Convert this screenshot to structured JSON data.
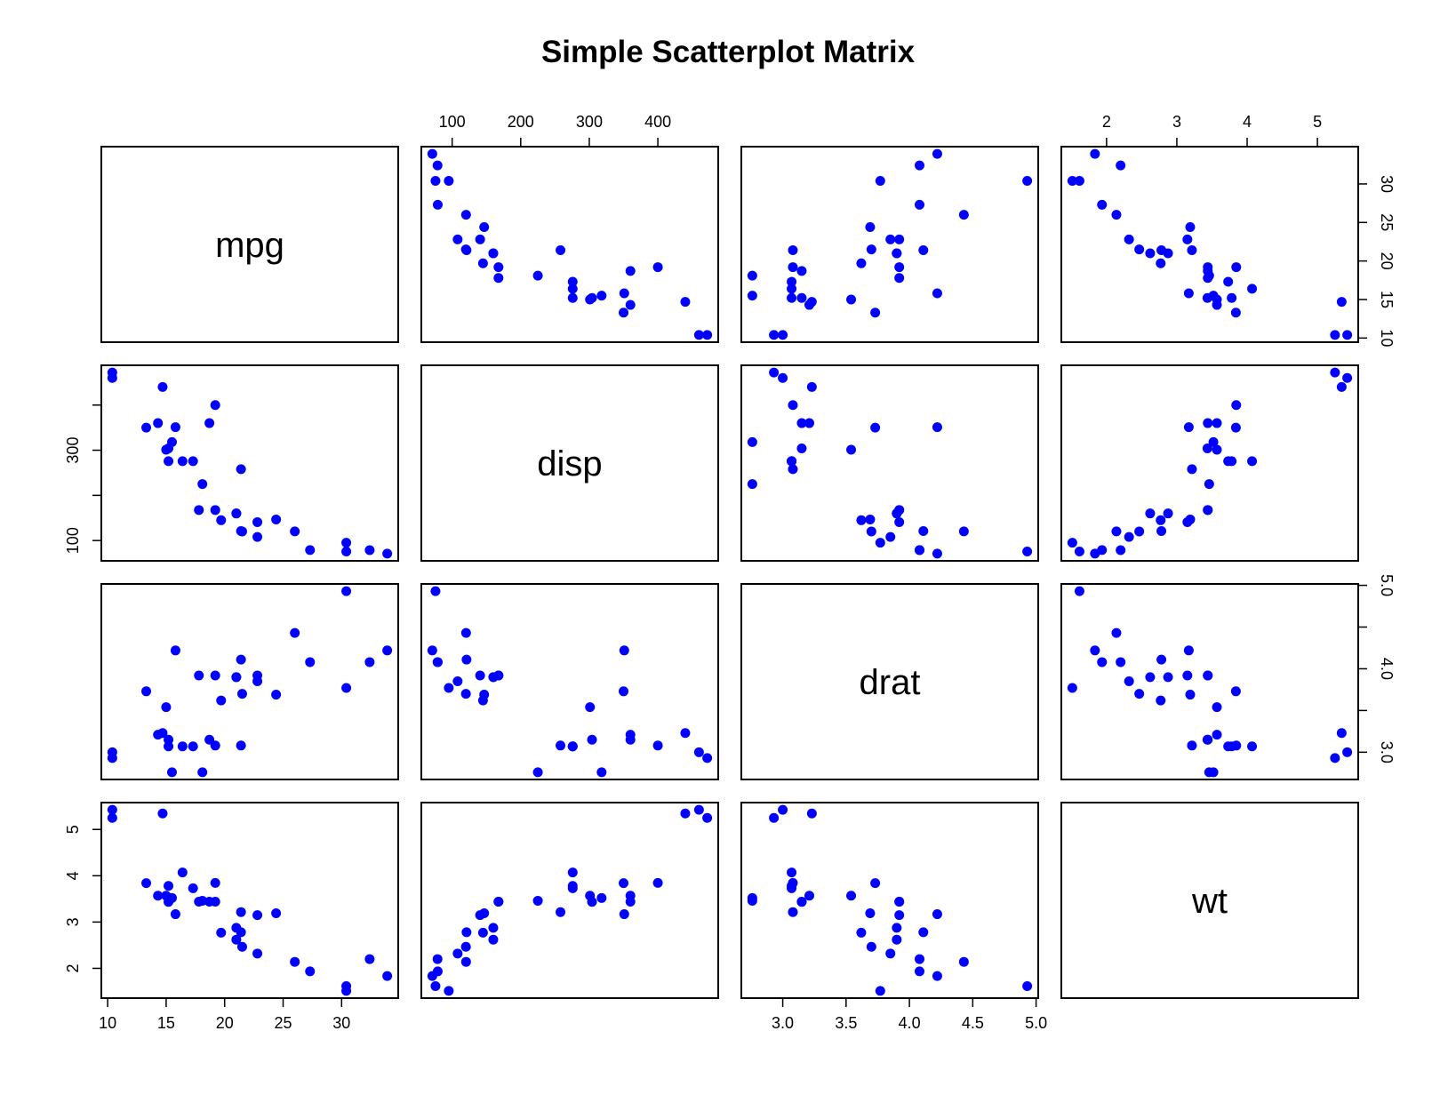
{
  "chart_data": {
    "type": "scatter",
    "title": "Simple Scatterplot Matrix",
    "point_color": "#0000ff",
    "variables": [
      "mpg",
      "disp",
      "drat",
      "wt"
    ],
    "ranges": {
      "mpg": [
        10.4,
        33.9
      ],
      "disp": [
        71.1,
        472
      ],
      "drat": [
        2.76,
        4.93
      ],
      "wt": [
        1.513,
        5.424
      ]
    },
    "tick_labels": {
      "mpg": [
        "10",
        "15",
        "20",
        "25",
        "30"
      ],
      "disp": [
        "100",
        "200",
        "300",
        "400"
      ],
      "drat_bottom": [
        "3.0",
        "3.5",
        "4.0",
        "4.5",
        "5.0"
      ],
      "drat_right": [
        "3.0",
        "4.0",
        "5.0"
      ],
      "wt": [
        "2",
        "3",
        "4",
        "5"
      ],
      "mpg_right": [
        "10",
        "15",
        "20",
        "25",
        "30"
      ],
      "disp_left": [
        "100",
        "300"
      ]
    },
    "tick_values": {
      "mpg": [
        10,
        15,
        20,
        25,
        30
      ],
      "disp": [
        100,
        200,
        300,
        400
      ],
      "drat_bottom": [
        3.0,
        3.5,
        4.0,
        4.5,
        5.0
      ],
      "drat_right": [
        3.0,
        3.5,
        4.0,
        4.5,
        5.0
      ],
      "wt": [
        2,
        3,
        4,
        5
      ],
      "mpg_right": [
        10,
        15,
        20,
        25,
        30
      ],
      "disp_left": [
        100,
        200,
        300,
        400
      ]
    },
    "data": {
      "mpg": [
        21.0,
        21.0,
        22.8,
        21.4,
        18.7,
        18.1,
        14.3,
        24.4,
        22.8,
        19.2,
        17.8,
        16.4,
        17.3,
        15.2,
        10.4,
        10.4,
        14.7,
        32.4,
        30.4,
        33.9,
        21.5,
        15.5,
        15.2,
        13.3,
        19.2,
        27.3,
        26.0,
        30.4,
        15.8,
        19.7,
        15.0,
        21.4
      ],
      "disp": [
        160,
        160,
        108,
        258,
        360,
        225,
        360,
        146.7,
        140.8,
        167.6,
        167.6,
        275.8,
        275.8,
        275.8,
        472,
        460,
        440,
        78.7,
        75.7,
        71.1,
        120.1,
        318,
        304,
        350,
        400,
        79,
        120.3,
        95.1,
        351,
        145,
        301,
        121
      ],
      "drat": [
        3.9,
        3.9,
        3.85,
        3.08,
        3.15,
        2.76,
        3.21,
        3.69,
        3.92,
        3.92,
        3.92,
        3.07,
        3.07,
        3.07,
        2.93,
        3.0,
        3.23,
        4.08,
        4.93,
        4.22,
        3.7,
        2.76,
        3.15,
        3.73,
        3.08,
        4.08,
        4.43,
        3.77,
        4.22,
        3.62,
        3.54,
        4.11
      ],
      "wt": [
        2.62,
        2.875,
        2.32,
        3.215,
        3.44,
        3.46,
        3.57,
        3.19,
        3.15,
        3.44,
        3.44,
        4.07,
        3.73,
        3.78,
        5.25,
        5.424,
        5.345,
        2.2,
        1.615,
        1.835,
        2.465,
        3.52,
        3.435,
        3.84,
        3.845,
        1.935,
        2.14,
        1.513,
        3.17,
        2.77,
        3.57,
        2.78
      ]
    }
  }
}
